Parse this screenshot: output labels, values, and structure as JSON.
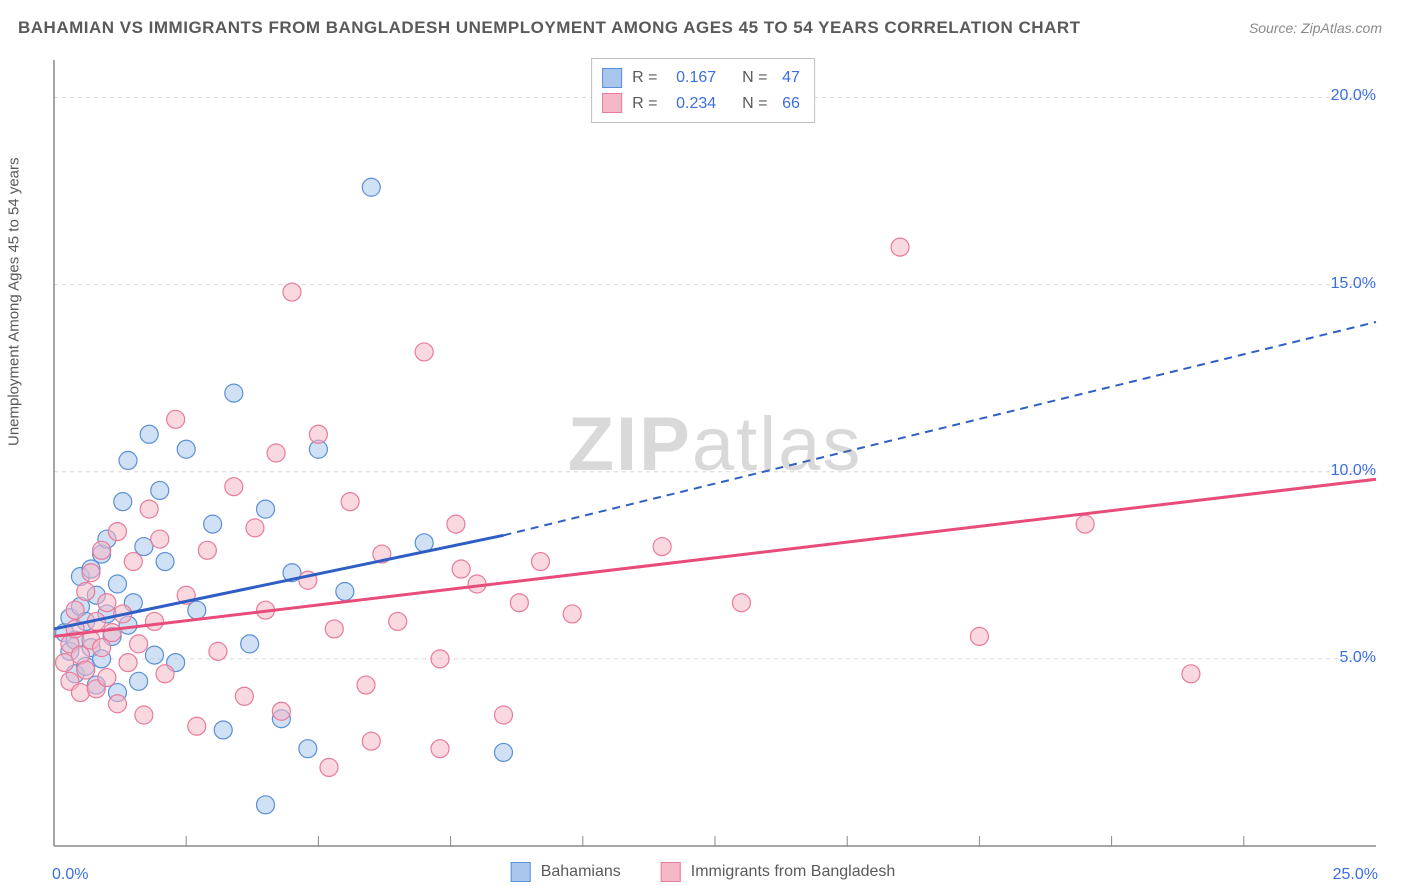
{
  "title": "BAHAMIAN VS IMMIGRANTS FROM BANGLADESH UNEMPLOYMENT AMONG AGES 45 TO 54 YEARS CORRELATION CHART",
  "source": "Source: ZipAtlas.com",
  "ylabel": "Unemployment Among Ages 45 to 54 years",
  "watermark": {
    "bold": "ZIP",
    "rest": "atlas"
  },
  "colors": {
    "blue_fill": "#a9c6ec",
    "blue_stroke": "#5b8fd6",
    "pink_fill": "#f5b8c6",
    "pink_stroke": "#e87b9a",
    "blue_line": "#2f5fc4",
    "pink_line": "#e84d7a",
    "grid": "#d8d8d8",
    "axis": "#888888",
    "tick_text": "#3b6fe0"
  },
  "chart": {
    "type": "scatter",
    "xlim": [
      0,
      25
    ],
    "ylim": [
      0,
      21
    ],
    "yticks": [
      {
        "v": 5,
        "label": "5.0%"
      },
      {
        "v": 10,
        "label": "10.0%"
      },
      {
        "v": 15,
        "label": "15.0%"
      },
      {
        "v": 20,
        "label": "20.0%"
      }
    ],
    "xticks": [
      2.5,
      5,
      7.5,
      10,
      12.5,
      15,
      17.5,
      20,
      22.5
    ],
    "x_origin_label": "0.0%",
    "x_max_label": "25.0%",
    "marker_radius": 9,
    "marker_opacity": 0.55,
    "series": [
      {
        "name": "Bahamians",
        "color_key": "blue",
        "points": [
          [
            0.2,
            5.7
          ],
          [
            0.3,
            5.2
          ],
          [
            0.3,
            6.1
          ],
          [
            0.4,
            4.6
          ],
          [
            0.4,
            5.5
          ],
          [
            0.5,
            6.4
          ],
          [
            0.5,
            7.2
          ],
          [
            0.6,
            4.8
          ],
          [
            0.6,
            6.0
          ],
          [
            0.7,
            5.3
          ],
          [
            0.7,
            7.4
          ],
          [
            0.8,
            4.3
          ],
          [
            0.8,
            6.7
          ],
          [
            0.9,
            7.8
          ],
          [
            0.9,
            5.0
          ],
          [
            1.0,
            6.2
          ],
          [
            1.0,
            8.2
          ],
          [
            1.1,
            5.6
          ],
          [
            1.2,
            4.1
          ],
          [
            1.2,
            7.0
          ],
          [
            1.3,
            9.2
          ],
          [
            1.4,
            5.9
          ],
          [
            1.4,
            10.3
          ],
          [
            1.5,
            6.5
          ],
          [
            1.6,
            4.4
          ],
          [
            1.7,
            8.0
          ],
          [
            1.8,
            11.0
          ],
          [
            1.9,
            5.1
          ],
          [
            2.0,
            9.5
          ],
          [
            2.1,
            7.6
          ],
          [
            2.3,
            4.9
          ],
          [
            2.5,
            10.6
          ],
          [
            2.7,
            6.3
          ],
          [
            3.0,
            8.6
          ],
          [
            3.2,
            3.1
          ],
          [
            3.4,
            12.1
          ],
          [
            3.7,
            5.4
          ],
          [
            4.0,
            9.0
          ],
          [
            4.3,
            3.4
          ],
          [
            4.5,
            7.3
          ],
          [
            4.8,
            2.6
          ],
          [
            4.0,
            1.1
          ],
          [
            5.0,
            10.6
          ],
          [
            5.5,
            6.8
          ],
          [
            6.0,
            17.6
          ],
          [
            7.0,
            8.1
          ],
          [
            8.5,
            2.5
          ]
        ],
        "trend": {
          "x0": 0,
          "y0": 5.8,
          "x_solid_end": 8.5,
          "y_solid_end": 8.3,
          "x1": 25,
          "y1": 14.0
        }
      },
      {
        "name": "Immigrants from Bangladesh",
        "color_key": "pink",
        "points": [
          [
            0.2,
            4.9
          ],
          [
            0.3,
            5.4
          ],
          [
            0.3,
            4.4
          ],
          [
            0.4,
            5.8
          ],
          [
            0.4,
            6.3
          ],
          [
            0.5,
            4.1
          ],
          [
            0.5,
            5.1
          ],
          [
            0.6,
            6.8
          ],
          [
            0.6,
            4.7
          ],
          [
            0.7,
            5.5
          ],
          [
            0.7,
            7.3
          ],
          [
            0.8,
            4.2
          ],
          [
            0.8,
            6.0
          ],
          [
            0.9,
            5.3
          ],
          [
            0.9,
            7.9
          ],
          [
            1.0,
            4.5
          ],
          [
            1.0,
            6.5
          ],
          [
            1.1,
            5.7
          ],
          [
            1.2,
            3.8
          ],
          [
            1.2,
            8.4
          ],
          [
            1.3,
            6.2
          ],
          [
            1.4,
            4.9
          ],
          [
            1.5,
            7.6
          ],
          [
            1.6,
            5.4
          ],
          [
            1.7,
            3.5
          ],
          [
            1.8,
            9.0
          ],
          [
            1.9,
            6.0
          ],
          [
            2.0,
            8.2
          ],
          [
            2.1,
            4.6
          ],
          [
            2.3,
            11.4
          ],
          [
            2.5,
            6.7
          ],
          [
            2.7,
            3.2
          ],
          [
            2.9,
            7.9
          ],
          [
            3.1,
            5.2
          ],
          [
            3.4,
            9.6
          ],
          [
            3.6,
            4.0
          ],
          [
            3.8,
            8.5
          ],
          [
            4.0,
            6.3
          ],
          [
            4.3,
            3.6
          ],
          [
            4.5,
            14.8
          ],
          [
            4.8,
            7.1
          ],
          [
            5.0,
            11.0
          ],
          [
            5.3,
            5.8
          ],
          [
            5.6,
            9.2
          ],
          [
            5.9,
            4.3
          ],
          [
            6.2,
            7.8
          ],
          [
            6.5,
            6.0
          ],
          [
            7.0,
            13.2
          ],
          [
            7.3,
            5.0
          ],
          [
            7.6,
            8.6
          ],
          [
            5.2,
            2.1
          ],
          [
            6.0,
            2.8
          ],
          [
            7.3,
            2.6
          ],
          [
            8.0,
            7.0
          ],
          [
            8.5,
            3.5
          ],
          [
            8.8,
            6.5
          ],
          [
            9.2,
            7.6
          ],
          [
            9.8,
            6.2
          ],
          [
            11.5,
            8.0
          ],
          [
            13.0,
            6.5
          ],
          [
            16.0,
            16.0
          ],
          [
            17.5,
            5.6
          ],
          [
            19.5,
            8.6
          ],
          [
            21.5,
            4.6
          ],
          [
            7.7,
            7.4
          ],
          [
            4.2,
            10.5
          ]
        ],
        "trend": {
          "x0": 0,
          "y0": 5.6,
          "x_solid_end": 25,
          "y_solid_end": 9.8,
          "x1": 25,
          "y1": 9.8
        }
      }
    ]
  },
  "legend_top": [
    {
      "color_key": "blue",
      "r_label": "R =",
      "r_value": "0.167",
      "n_label": "N =",
      "n_value": "47"
    },
    {
      "color_key": "pink",
      "r_label": "R =",
      "r_value": "0.234",
      "n_label": "N =",
      "n_value": "66"
    }
  ],
  "legend_bottom": [
    {
      "color_key": "blue",
      "label": "Bahamians"
    },
    {
      "color_key": "pink",
      "label": "Immigrants from Bangladesh"
    }
  ]
}
